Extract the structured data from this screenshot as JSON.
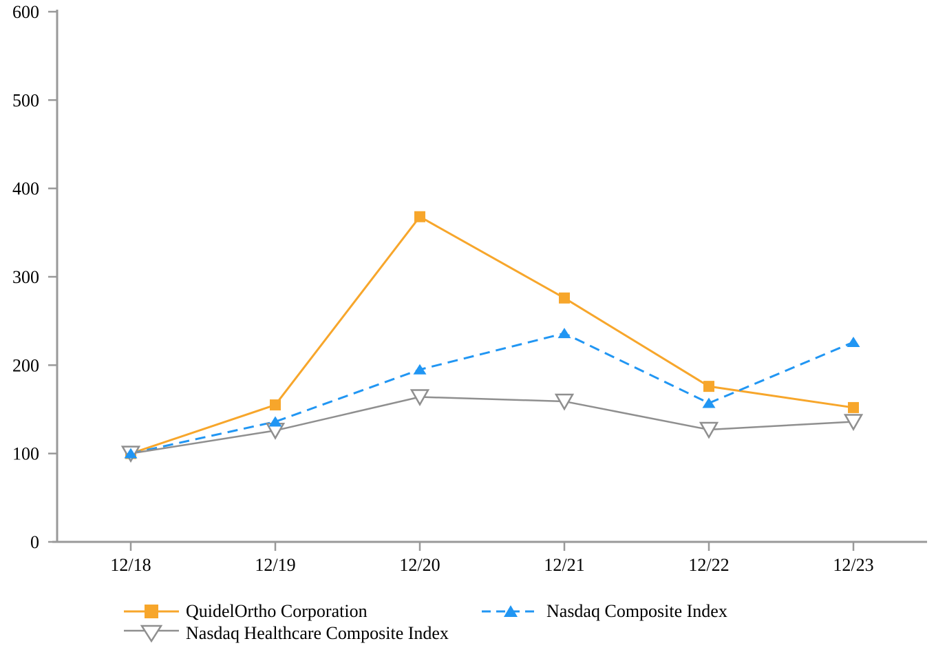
{
  "chart_data": {
    "type": "line",
    "x_categories": [
      "12/18",
      "12/19",
      "12/20",
      "12/21",
      "12/22",
      "12/23"
    ],
    "y_ticks": [
      0,
      100,
      200,
      300,
      400,
      500,
      600
    ],
    "ylim": [
      0,
      600
    ],
    "grid": false,
    "legend_position": "bottom",
    "series": [
      {
        "name": "QuidelOrtho Corporation",
        "values": [
          100,
          155,
          368,
          276,
          176,
          152
        ],
        "color": "#F7A62B",
        "line_style": "solid",
        "marker": "filled-square"
      },
      {
        "name": "Nasdaq Composite Index",
        "values": [
          100,
          136,
          195,
          236,
          157,
          226
        ],
        "color": "#2196F3",
        "line_style": "dashed",
        "marker": "filled-triangle-up"
      },
      {
        "name": "Nasdaq Healthcare Composite Index",
        "values": [
          100,
          126,
          164,
          159,
          127,
          136
        ],
        "color": "#8F8F8F",
        "line_style": "solid",
        "marker": "open-triangle-down"
      }
    ],
    "axis_color": "#999999",
    "text_color": "#000000",
    "background_color": "#FFFFFF"
  }
}
